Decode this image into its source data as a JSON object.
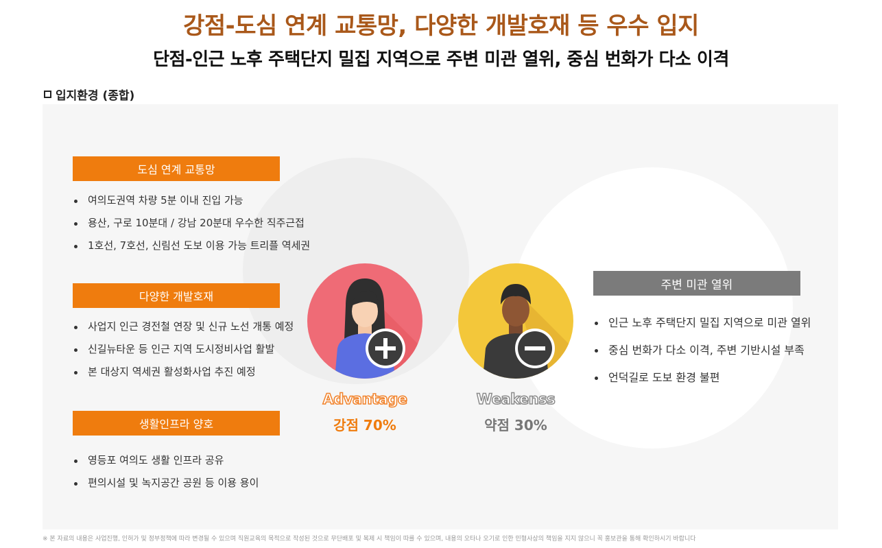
{
  "header": {
    "title": "강점-도심 연계 교통망, 다양한 개발호재 등 우수 입지",
    "subtitle": "단점-인근 노후 주택단지 밀집 지역으로 주변 미관 열위, 중심 번화가 다소 이격"
  },
  "section_label": "입지환경 (종합)",
  "strengths": [
    {
      "category": "도심 연계 교통망",
      "items": [
        "여의도권역 차량 5분 이내 진입 가능",
        "용산, 구로 10분대 / 강남 20분대 우수한 직주근접",
        "1호선, 7호선, 신림선 도보 이용 가능 트리플 역세권"
      ]
    },
    {
      "category": "다양한 개발호재",
      "items": [
        "사업지 인근 경전철 연장 및 신규 노선 개통 예정",
        "신길뉴타운 등 인근 지역 도시정비사업 활발",
        "본 대상지 역세권 활성화사업 추진 예정"
      ]
    },
    {
      "category": "생활인프라 양호",
      "items": [
        "영등포 여의도 생활 인프라 공유",
        "편의시설 및 녹지공간 공원 등 이용 용이"
      ]
    }
  ],
  "advantage": {
    "label_en": "Advantage",
    "label_kr": "강점 70%",
    "percent": 70
  },
  "weakness": {
    "label_en": "Weakenss",
    "label_kr": "약점 30%",
    "percent": 30
  },
  "weak_box": {
    "category": "주변 미관 열위",
    "items": [
      "인근 노후 주택단지 밀집 지역으로 미관 열위",
      "중심 번화가 다소 이격, 주변 기반시설 부족",
      "언덕길로 도보 환경 불편"
    ]
  },
  "colors": {
    "accent": "#ef7c0e",
    "title": "#a9581a",
    "gray_box": "#7b7b7b",
    "adv_circle": "#ef6b76",
    "weak_circle": "#f3c73a"
  },
  "icons": {
    "advantage": "plus-icon",
    "weakness": "minus-icon"
  },
  "footnote": "※ 본 자료의 내용은 사업진행, 인허가 및 정부정책에 따라 변경될 수 있으며 직원교육의 목적으로 작성된 것으로 무단배포 및 복제 시 책임이 따를 수 있으며, 내용의 오타나 오기로 인한 민형사상의 책임을 지지 않으니 꼭 홍보관을 통해 확인하시기 바랍니다"
}
